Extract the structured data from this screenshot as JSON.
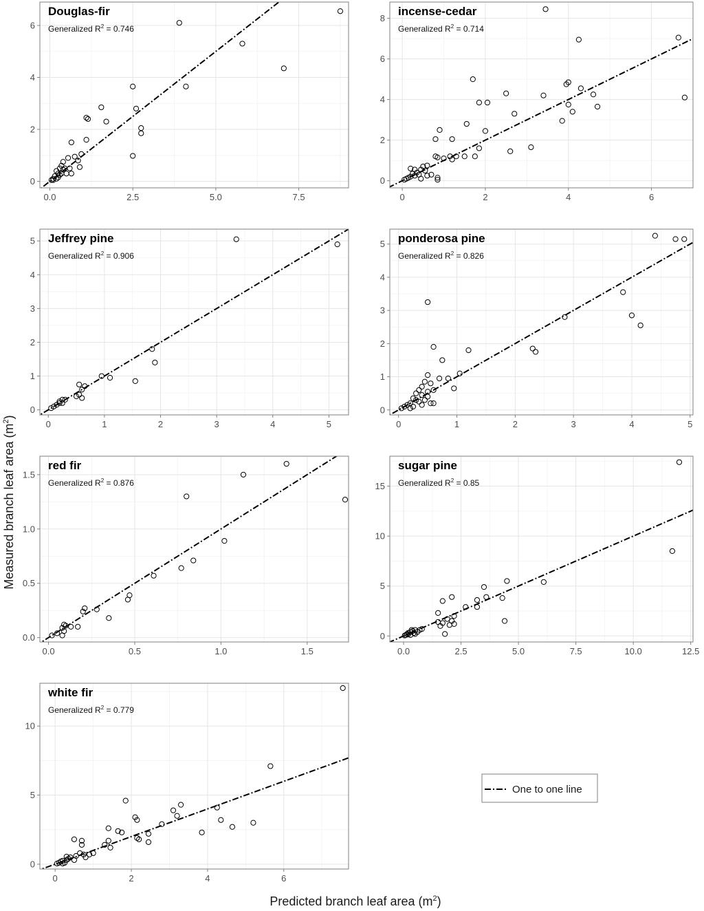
{
  "figure": {
    "ylabel": "Measured branch leaf area",
    "xlabel": "Predicted branch leaf area",
    "unit_base": "(m",
    "unit_sup": "2",
    "unit_close": ")",
    "legend": {
      "label": "One to one line"
    },
    "r2_prefix": "Generalized R",
    "r2_sup": "2",
    "r2_eq": " = "
  },
  "chart_data": [
    {
      "type": "scatter",
      "title": "Douglas-fir",
      "r2": "0.746",
      "xlim": [
        -0.3,
        9.0
      ],
      "ylim": [
        -0.25,
        6.9
      ],
      "xticks": [
        0,
        2.5,
        5.0,
        7.5
      ],
      "xtick_labels": [
        "0.0",
        "2.5",
        "5.0",
        "7.5"
      ],
      "yticks": [
        0,
        2,
        4,
        6
      ],
      "ytick_labels": [
        "0",
        "2",
        "4",
        "6"
      ],
      "points": [
        [
          8.75,
          6.55
        ],
        [
          3.9,
          6.1
        ],
        [
          5.8,
          5.3
        ],
        [
          7.05,
          4.35
        ],
        [
          4.1,
          3.65
        ],
        [
          2.5,
          3.65
        ],
        [
          2.6,
          2.8
        ],
        [
          1.55,
          2.85
        ],
        [
          1.1,
          2.45
        ],
        [
          1.15,
          2.4
        ],
        [
          1.7,
          2.3
        ],
        [
          2.75,
          2.05
        ],
        [
          2.75,
          1.85
        ],
        [
          1.1,
          1.6
        ],
        [
          2.5,
          0.98
        ],
        [
          0.65,
          1.5
        ],
        [
          0.95,
          1.05
        ],
        [
          0.75,
          0.95
        ],
        [
          0.85,
          0.8
        ],
        [
          0.55,
          0.9
        ],
        [
          0.4,
          0.75
        ],
        [
          0.35,
          0.6
        ],
        [
          0.3,
          0.5
        ],
        [
          0.45,
          0.5
        ],
        [
          0.6,
          0.5
        ],
        [
          0.9,
          0.55
        ],
        [
          0.2,
          0.4
        ],
        [
          0.25,
          0.3
        ],
        [
          0.35,
          0.3
        ],
        [
          0.5,
          0.3
        ],
        [
          0.65,
          0.3
        ],
        [
          0.15,
          0.2
        ],
        [
          0.25,
          0.15
        ],
        [
          0.1,
          0.1
        ],
        [
          0.05,
          0.05
        ],
        [
          0.1,
          0.05
        ],
        [
          0.2,
          0.1
        ],
        [
          0.4,
          0.45
        ],
        [
          0.3,
          0.25
        ]
      ]
    },
    {
      "type": "scatter",
      "title": "incense-cedar",
      "r2": "0.714",
      "xlim": [
        -0.3,
        7.0
      ],
      "ylim": [
        -0.35,
        8.8
      ],
      "xticks": [
        0,
        2,
        4,
        6
      ],
      "xtick_labels": [
        "0",
        "2",
        "4",
        "6"
      ],
      "yticks": [
        0,
        2,
        4,
        6,
        8
      ],
      "ytick_labels": [
        "0",
        "2",
        "4",
        "6",
        "8"
      ],
      "points": [
        [
          3.45,
          8.45
        ],
        [
          4.25,
          6.95
        ],
        [
          6.65,
          7.05
        ],
        [
          1.7,
          5.0
        ],
        [
          4.0,
          4.85
        ],
        [
          3.95,
          4.75
        ],
        [
          4.3,
          4.55
        ],
        [
          2.5,
          4.3
        ],
        [
          3.4,
          4.2
        ],
        [
          4.6,
          4.25
        ],
        [
          6.8,
          4.1
        ],
        [
          1.85,
          3.85
        ],
        [
          2.05,
          3.85
        ],
        [
          4.0,
          3.75
        ],
        [
          4.7,
          3.65
        ],
        [
          4.1,
          3.4
        ],
        [
          2.7,
          3.3
        ],
        [
          3.85,
          2.95
        ],
        [
          1.55,
          2.8
        ],
        [
          0.9,
          2.5
        ],
        [
          2.0,
          2.45
        ],
        [
          0.8,
          2.05
        ],
        [
          1.2,
          2.05
        ],
        [
          1.85,
          1.6
        ],
        [
          3.1,
          1.65
        ],
        [
          2.6,
          1.45
        ],
        [
          1.5,
          1.2
        ],
        [
          1.15,
          1.2
        ],
        [
          1.3,
          1.2
        ],
        [
          1.75,
          1.2
        ],
        [
          0.85,
          1.15
        ],
        [
          1.0,
          1.1
        ],
        [
          0.8,
          1.2
        ],
        [
          1.2,
          1.05
        ],
        [
          0.6,
          0.75
        ],
        [
          0.55,
          0.5
        ],
        [
          0.5,
          0.7
        ],
        [
          0.45,
          0.55
        ],
        [
          0.3,
          0.55
        ],
        [
          0.2,
          0.6
        ],
        [
          0.35,
          0.4
        ],
        [
          0.4,
          0.3
        ],
        [
          0.2,
          0.2
        ],
        [
          0.25,
          0.35
        ],
        [
          0.1,
          0.1
        ],
        [
          0.05,
          0.05
        ],
        [
          0.15,
          0.15
        ],
        [
          0.7,
          0.3
        ],
        [
          0.85,
          0.05
        ],
        [
          0.85,
          0.15
        ],
        [
          0.45,
          0.1
        ],
        [
          0.6,
          0.25
        ],
        [
          0.3,
          0.25
        ]
      ]
    },
    {
      "type": "scatter",
      "title": "Jeffrey pine",
      "r2": "0.906",
      "xlim": [
        -0.15,
        5.35
      ],
      "ylim": [
        -0.15,
        5.35
      ],
      "xticks": [
        0,
        1,
        2,
        3,
        4,
        5
      ],
      "xtick_labels": [
        "0",
        "1",
        "2",
        "3",
        "4",
        "5"
      ],
      "yticks": [
        0,
        1,
        2,
        3,
        4,
        5
      ],
      "ytick_labels": [
        "0",
        "1",
        "2",
        "3",
        "4",
        "5"
      ],
      "points": [
        [
          3.35,
          5.05
        ],
        [
          5.15,
          4.9
        ],
        [
          1.85,
          1.8
        ],
        [
          1.9,
          1.4
        ],
        [
          0.95,
          1.0
        ],
        [
          1.1,
          0.95
        ],
        [
          1.55,
          0.85
        ],
        [
          0.55,
          0.75
        ],
        [
          0.65,
          0.7
        ],
        [
          0.6,
          0.6
        ],
        [
          0.5,
          0.4
        ],
        [
          0.55,
          0.45
        ],
        [
          0.6,
          0.35
        ],
        [
          0.25,
          0.3
        ],
        [
          0.3,
          0.3
        ],
        [
          0.2,
          0.25
        ],
        [
          0.15,
          0.15
        ],
        [
          0.1,
          0.1
        ],
        [
          0.05,
          0.05
        ],
        [
          0.2,
          0.2
        ],
        [
          0.25,
          0.2
        ]
      ]
    },
    {
      "type": "scatter",
      "title": "ponderosa pine",
      "r2": "0.826",
      "xlim": [
        -0.15,
        5.05
      ],
      "ylim": [
        -0.15,
        5.45
      ],
      "xticks": [
        0,
        1,
        2,
        3,
        4,
        5
      ],
      "xtick_labels": [
        "0",
        "1",
        "2",
        "3",
        "4",
        "5"
      ],
      "yticks": [
        0,
        1,
        2,
        3,
        4,
        5
      ],
      "ytick_labels": [
        "0",
        "1",
        "2",
        "3",
        "4",
        "5"
      ],
      "points": [
        [
          4.4,
          5.25
        ],
        [
          4.75,
          5.15
        ],
        [
          4.9,
          5.15
        ],
        [
          3.85,
          3.55
        ],
        [
          4.0,
          2.85
        ],
        [
          4.15,
          2.55
        ],
        [
          2.85,
          2.8
        ],
        [
          0.5,
          3.25
        ],
        [
          0.6,
          1.9
        ],
        [
          2.3,
          1.85
        ],
        [
          2.35,
          1.75
        ],
        [
          1.2,
          1.8
        ],
        [
          0.75,
          1.5
        ],
        [
          1.05,
          1.1
        ],
        [
          0.5,
          1.05
        ],
        [
          0.7,
          0.95
        ],
        [
          0.85,
          0.95
        ],
        [
          0.45,
          0.85
        ],
        [
          0.55,
          0.8
        ],
        [
          0.4,
          0.7
        ],
        [
          0.95,
          0.65
        ],
        [
          0.35,
          0.6
        ],
        [
          0.6,
          0.6
        ],
        [
          0.3,
          0.5
        ],
        [
          0.4,
          0.45
        ],
        [
          0.5,
          0.4
        ],
        [
          0.25,
          0.35
        ],
        [
          0.3,
          0.3
        ],
        [
          0.35,
          0.25
        ],
        [
          0.55,
          0.2
        ],
        [
          0.6,
          0.2
        ],
        [
          0.2,
          0.2
        ],
        [
          0.15,
          0.15
        ],
        [
          0.1,
          0.1
        ],
        [
          0.05,
          0.05
        ],
        [
          0.2,
          0.05
        ],
        [
          0.25,
          0.1
        ],
        [
          0.4,
          0.15
        ],
        [
          0.45,
          0.3
        ],
        [
          0.5,
          0.55
        ]
      ]
    },
    {
      "type": "scatter",
      "title": "red fir",
      "r2": "0.876",
      "xlim": [
        -0.05,
        1.74
      ],
      "ylim": [
        -0.04,
        1.67
      ],
      "xticks": [
        0,
        0.5,
        1.0,
        1.5
      ],
      "xtick_labels": [
        "0.0",
        "0.5",
        "1.0",
        "1.5"
      ],
      "yticks": [
        0,
        0.5,
        1.0,
        1.5
      ],
      "ytick_labels": [
        "0.0",
        "0.5",
        "1.0",
        "1.5"
      ],
      "points": [
        [
          1.38,
          1.6
        ],
        [
          1.13,
          1.5
        ],
        [
          0.8,
          1.3
        ],
        [
          1.72,
          1.27
        ],
        [
          1.02,
          0.89
        ],
        [
          0.84,
          0.71
        ],
        [
          0.77,
          0.64
        ],
        [
          0.61,
          0.57
        ],
        [
          0.47,
          0.39
        ],
        [
          0.46,
          0.35
        ],
        [
          0.21,
          0.27
        ],
        [
          0.2,
          0.24
        ],
        [
          0.28,
          0.26
        ],
        [
          0.35,
          0.18
        ],
        [
          0.09,
          0.12
        ],
        [
          0.1,
          0.11
        ],
        [
          0.08,
          0.09
        ],
        [
          0.13,
          0.1
        ],
        [
          0.17,
          0.1
        ],
        [
          0.09,
          0.06
        ],
        [
          0.05,
          0.04
        ],
        [
          0.08,
          0.02
        ],
        [
          0.02,
          0.02
        ]
      ]
    },
    {
      "type": "scatter",
      "title": "sugar pine",
      "r2": "0.85",
      "xlim": [
        -0.6,
        12.6
      ],
      "ylim": [
        -0.6,
        18.0
      ],
      "xticks": [
        0,
        2.5,
        5.0,
        7.5,
        10.0,
        12.5
      ],
      "xtick_labels": [
        "0.0",
        "2.5",
        "5.0",
        "7.5",
        "10.0",
        "12.5"
      ],
      "yticks": [
        0,
        5,
        10,
        15
      ],
      "ytick_labels": [
        "0",
        "5",
        "10",
        "15"
      ],
      "points": [
        [
          12.0,
          17.4
        ],
        [
          11.7,
          8.5
        ],
        [
          6.1,
          5.4
        ],
        [
          4.5,
          5.5
        ],
        [
          3.5,
          4.9
        ],
        [
          3.6,
          3.9
        ],
        [
          4.3,
          3.8
        ],
        [
          2.1,
          3.9
        ],
        [
          1.7,
          3.5
        ],
        [
          3.2,
          3.6
        ],
        [
          2.7,
          2.9
        ],
        [
          3.2,
          2.9
        ],
        [
          1.5,
          2.3
        ],
        [
          2.2,
          2.0
        ],
        [
          1.9,
          1.7
        ],
        [
          2.1,
          1.5
        ],
        [
          1.5,
          1.4
        ],
        [
          1.7,
          1.3
        ],
        [
          2.0,
          1.1
        ],
        [
          2.2,
          1.2
        ],
        [
          1.6,
          1.0
        ],
        [
          4.4,
          1.5
        ],
        [
          1.8,
          0.2
        ],
        [
          0.8,
          0.7
        ],
        [
          0.7,
          0.6
        ],
        [
          0.5,
          0.6
        ],
        [
          0.4,
          0.5
        ],
        [
          0.3,
          0.4
        ],
        [
          0.2,
          0.3
        ],
        [
          0.15,
          0.2
        ],
        [
          0.1,
          0.1
        ],
        [
          0.05,
          0.05
        ],
        [
          0.3,
          0.1
        ],
        [
          0.5,
          0.2
        ],
        [
          0.6,
          0.4
        ],
        [
          0.35,
          0.6
        ],
        [
          0.2,
          0.15
        ],
        [
          0.45,
          0.3
        ]
      ]
    },
    {
      "type": "scatter",
      "title": "white fir",
      "r2": "0.779",
      "xlim": [
        -0.4,
        7.7
      ],
      "ylim": [
        -0.35,
        13.1
      ],
      "xticks": [
        0,
        2,
        4,
        6
      ],
      "xtick_labels": [
        "0",
        "2",
        "4",
        "6"
      ],
      "yticks": [
        0,
        5,
        10
      ],
      "ytick_labels": [
        "0",
        "5",
        "10"
      ],
      "points": [
        [
          7.55,
          12.75
        ],
        [
          5.65,
          7.1
        ],
        [
          1.85,
          4.6
        ],
        [
          3.3,
          4.3
        ],
        [
          4.25,
          4.1
        ],
        [
          3.1,
          3.9
        ],
        [
          2.1,
          3.4
        ],
        [
          2.15,
          3.2
        ],
        [
          3.2,
          3.5
        ],
        [
          4.35,
          3.2
        ],
        [
          5.2,
          3.0
        ],
        [
          2.8,
          2.9
        ],
        [
          4.65,
          2.7
        ],
        [
          1.4,
          2.6
        ],
        [
          1.65,
          2.4
        ],
        [
          1.75,
          2.3
        ],
        [
          2.45,
          2.2
        ],
        [
          3.85,
          2.3
        ],
        [
          2.15,
          1.9
        ],
        [
          2.2,
          1.8
        ],
        [
          2.45,
          1.6
        ],
        [
          0.5,
          1.8
        ],
        [
          0.7,
          1.7
        ],
        [
          1.4,
          1.7
        ],
        [
          1.3,
          1.4
        ],
        [
          1.45,
          1.2
        ],
        [
          0.7,
          1.4
        ],
        [
          1.0,
          0.8
        ],
        [
          0.9,
          0.7
        ],
        [
          0.75,
          0.7
        ],
        [
          0.65,
          0.8
        ],
        [
          0.8,
          0.5
        ],
        [
          0.4,
          0.5
        ],
        [
          0.35,
          0.4
        ],
        [
          0.3,
          0.3
        ],
        [
          0.2,
          0.25
        ],
        [
          0.15,
          0.2
        ],
        [
          0.1,
          0.1
        ],
        [
          0.05,
          0.05
        ],
        [
          0.25,
          0.1
        ],
        [
          0.5,
          0.3
        ],
        [
          0.55,
          0.6
        ],
        [
          0.2,
          0.05
        ],
        [
          0.3,
          0.55
        ]
      ]
    }
  ]
}
